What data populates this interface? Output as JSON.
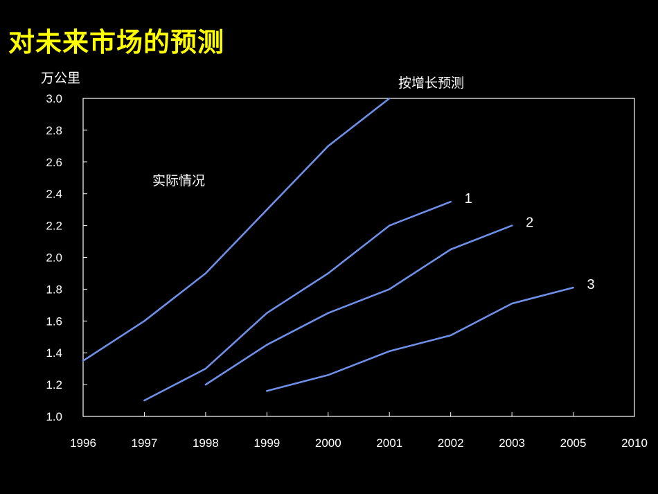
{
  "page": {
    "title": "对未来市场的预测"
  },
  "chart_data": {
    "type": "line",
    "title": "",
    "xlabel": "",
    "ylabel": "万公里",
    "categories": [
      "1996",
      "1997",
      "1998",
      "1999",
      "2000",
      "2001",
      "2002",
      "2003",
      "2005",
      "2010"
    ],
    "ylim": [
      1.0,
      3.0
    ],
    "yticks": [
      "3.0",
      "2.8",
      "2.6",
      "2.4",
      "2.2",
      "2.0",
      "1.8",
      "1.6",
      "1.4",
      "1.2",
      "1.0"
    ],
    "grid": false,
    "annotations": {
      "actual": "实际情况",
      "forecast": "按增长预测"
    },
    "series": [
      {
        "name": "",
        "points": [
          [
            0,
            1.35
          ],
          [
            1,
            1.6
          ],
          [
            2,
            1.9
          ],
          [
            3,
            2.3
          ],
          [
            4,
            2.7
          ],
          [
            5,
            3.0
          ]
        ]
      },
      {
        "name": "1",
        "points": [
          [
            1,
            1.1
          ],
          [
            2,
            1.3
          ],
          [
            3,
            1.65
          ],
          [
            4,
            1.9
          ],
          [
            5,
            2.2
          ],
          [
            6,
            2.35
          ]
        ]
      },
      {
        "name": "2",
        "points": [
          [
            2,
            1.2
          ],
          [
            3,
            1.45
          ],
          [
            4,
            1.65
          ],
          [
            5,
            1.8
          ],
          [
            6,
            2.05
          ],
          [
            7,
            2.2
          ]
        ]
      },
      {
        "name": "3",
        "points": [
          [
            3,
            1.16
          ],
          [
            4,
            1.26
          ],
          [
            5,
            1.41
          ],
          [
            6,
            1.51
          ],
          [
            7,
            1.71
          ],
          [
            8,
            1.81
          ]
        ]
      }
    ],
    "colors": {
      "line": "#6F8FE8",
      "axis": "#FFFFFF",
      "title": "#FFFF00",
      "text": "#FFFFFF"
    }
  }
}
